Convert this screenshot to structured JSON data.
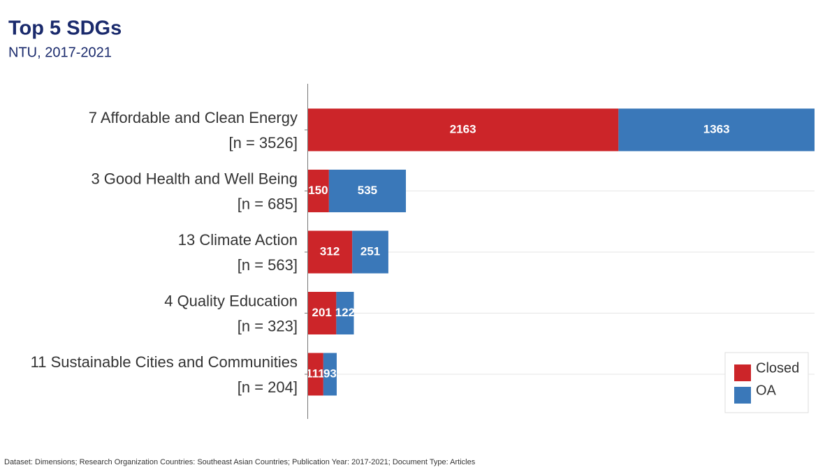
{
  "chart_data": {
    "type": "stacked_barh",
    "title": "Top 5 SDGs",
    "subtitle": "NTU, 2017-2021",
    "categories": [
      "7 Affordable and Clean Energy",
      "3 Good Health and Well Being",
      "13 Climate Action",
      "4 Quality Education",
      "11 Sustainable Cities and Communities"
    ],
    "category_sublabels": [
      "[n = 3526]",
      "[n = 685]",
      "[n = 563]",
      "[n = 323]",
      "[n = 204]"
    ],
    "series": [
      {
        "name": "Closed",
        "color": "#cc2529",
        "values": [
          2163,
          150,
          312,
          201,
          111
        ]
      },
      {
        "name": "OA",
        "color": "#3a78b9",
        "values": [
          1363,
          535,
          251,
          122,
          93
        ]
      }
    ],
    "xlim": [
      0,
      3526
    ],
    "grid": true,
    "legend": "lower right",
    "footnote": "Dataset: Dimensions; Research Organization Countries: Southeast Asian Countries; Publication Year: 2017-2021; Document Type: Articles"
  }
}
